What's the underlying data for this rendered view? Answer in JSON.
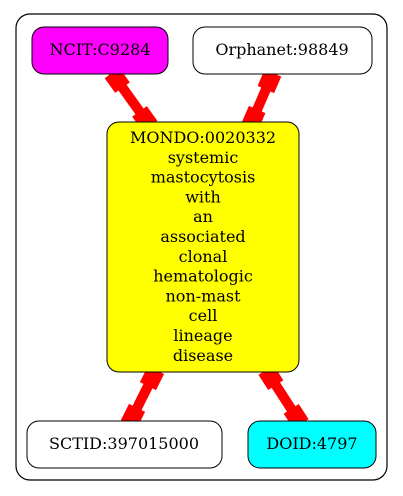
{
  "nodes": {
    "ncit": {
      "label": "NCIT:C9284",
      "fill": "#ff00ff"
    },
    "orphanet": {
      "label": "Orphanet:98849",
      "fill": "#ffffff"
    },
    "mondo": {
      "fill": "#ffff00",
      "lines": [
        "MONDO:0020332",
        "systemic",
        "mastocytosis",
        "with",
        "an",
        "associated",
        "clonal",
        "hematologic",
        "non-mast",
        "cell",
        "lineage",
        "disease"
      ]
    },
    "sctid": {
      "label": "SCTID:397015000",
      "fill": "#ffffff"
    },
    "doid": {
      "label": "DOID:4797",
      "fill": "#00ffff"
    }
  },
  "edge_color": "#ff0000",
  "edges": [
    {
      "from": "ncit",
      "to": "mondo"
    },
    {
      "from": "orphanet",
      "to": "mondo"
    },
    {
      "from": "mondo",
      "to": "sctid"
    },
    {
      "from": "mondo",
      "to": "doid"
    }
  ]
}
